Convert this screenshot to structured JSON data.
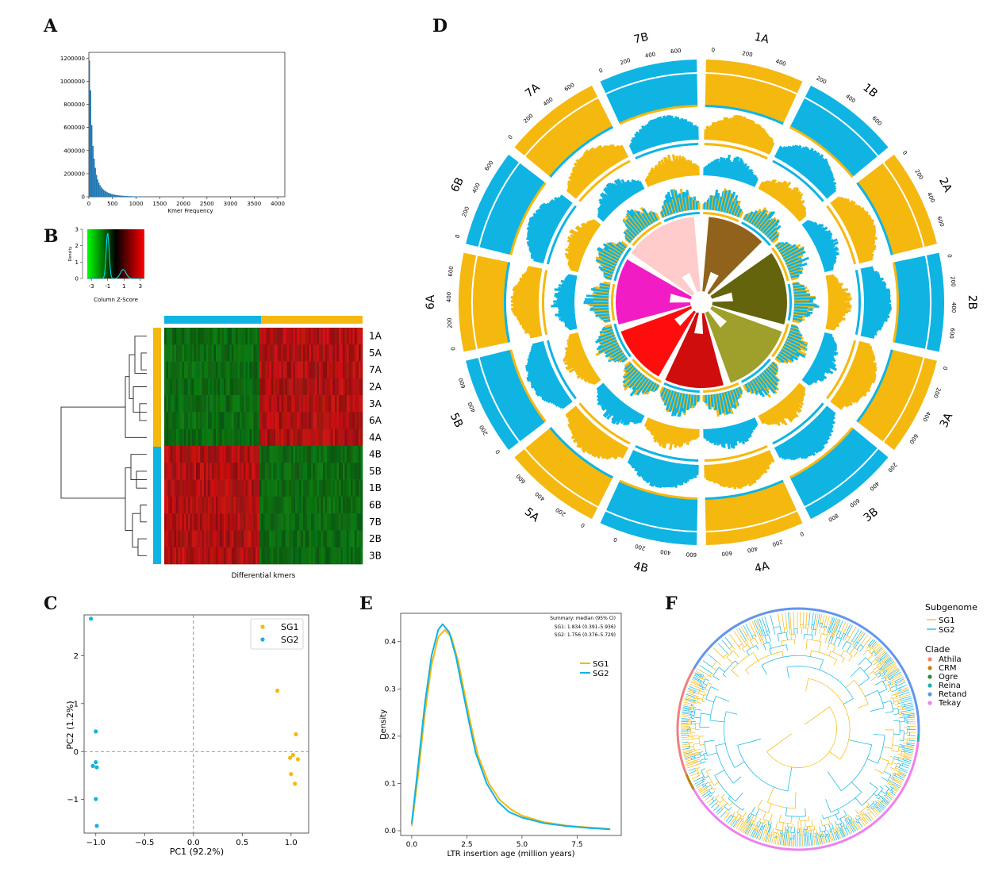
{
  "panels": {
    "A": {
      "letter": "A",
      "chart_data": {
        "type": "bar",
        "title": "",
        "xlabel": "Kmer Frequency",
        "ylabel": "",
        "xlim": [
          0,
          4150
        ],
        "ylim": [
          0,
          1250000
        ],
        "x_ticks": [
          0,
          500,
          1000,
          1500,
          2000,
          2500,
          3000,
          3500,
          4000
        ],
        "y_ticks": [
          0,
          200000,
          400000,
          600000,
          800000,
          1000000,
          1200000
        ],
        "bin_width": 25,
        "bins": [
          [
            12,
            1180000
          ],
          [
            37,
            920000
          ],
          [
            62,
            620000
          ],
          [
            87,
            440000
          ],
          [
            112,
            330000
          ],
          [
            137,
            250000
          ],
          [
            162,
            190000
          ],
          [
            187,
            150000
          ],
          [
            212,
            122000
          ],
          [
            237,
            100000
          ],
          [
            262,
            84000
          ],
          [
            287,
            71000
          ],
          [
            312,
            61000
          ],
          [
            337,
            53000
          ],
          [
            362,
            46000
          ],
          [
            387,
            40000
          ],
          [
            412,
            35000
          ],
          [
            437,
            31000
          ],
          [
            462,
            27000
          ],
          [
            487,
            24000
          ],
          [
            512,
            21000
          ],
          [
            537,
            19000
          ],
          [
            562,
            17000
          ],
          [
            587,
            15000
          ],
          [
            612,
            13500
          ],
          [
            637,
            12000
          ],
          [
            662,
            11000
          ],
          [
            687,
            10000
          ],
          [
            712,
            9000
          ],
          [
            737,
            8200
          ],
          [
            762,
            7500
          ],
          [
            787,
            6800
          ],
          [
            812,
            6200
          ],
          [
            837,
            5700
          ],
          [
            862,
            5200
          ],
          [
            887,
            4800
          ],
          [
            912,
            4400
          ],
          [
            937,
            4000
          ],
          [
            962,
            3700
          ],
          [
            987,
            3400
          ],
          [
            1012,
            3100
          ],
          [
            1037,
            2900
          ],
          [
            1062,
            2600
          ],
          [
            1087,
            2400
          ],
          [
            1112,
            2200
          ],
          [
            1137,
            2000
          ],
          [
            1162,
            1800
          ],
          [
            1187,
            1700
          ],
          [
            1212,
            1500
          ],
          [
            1237,
            1400
          ]
        ],
        "color": "#1f77b4"
      }
    },
    "B": {
      "letter": "B",
      "key_title": "Column Z-Score",
      "key_ylabel": "Density",
      "key_xticks": [
        "-3",
        "-1",
        "1",
        "3"
      ],
      "key_yticks": [
        "0",
        "1",
        "2",
        "3"
      ],
      "xlabel": "Differential kmers",
      "rows": [
        "1A",
        "5A",
        "7A",
        "2A",
        "3A",
        "6A",
        "4A",
        "4B",
        "5B",
        "1B",
        "6B",
        "7B",
        "2B",
        "3B"
      ],
      "row_groups": [
        "SG1",
        "SG1",
        "SG1",
        "SG1",
        "SG1",
        "SG1",
        "SG1",
        "SG2",
        "SG2",
        "SG2",
        "SG2",
        "SG2",
        "SG2",
        "SG2"
      ],
      "colors": {
        "sg1": "#f5b80f",
        "sg2": "#0fb4e3",
        "high": "#d01010",
        "low": "#108010"
      }
    },
    "C": {
      "letter": "C",
      "chart_data": {
        "type": "scatter",
        "xlabel": "PC1 (92.2%)",
        "ylabel": "PC2 (1.2%)",
        "xlim": [
          -1.12,
          1.18
        ],
        "ylim": [
          -1.7,
          2.85
        ],
        "x_ticks": [
          -1.0,
          -0.5,
          0.0,
          0.5,
          1.0
        ],
        "x_tick_labels": [
          "−1.0",
          "−0.5",
          "0.0",
          "0.5",
          "1.0"
        ],
        "y_ticks": [
          -1,
          0,
          1,
          2
        ],
        "y_tick_labels": [
          "−1",
          "0",
          "1",
          "2"
        ],
        "legend_position": "top-right",
        "series": [
          {
            "name": "SG1",
            "color": "#f5b80f",
            "points": [
              [
                0.86,
                1.27
              ],
              [
                1.05,
                0.36
              ],
              [
                1.02,
                -0.07
              ],
              [
                0.99,
                -0.13
              ],
              [
                1.07,
                -0.16
              ],
              [
                1.0,
                -0.47
              ],
              [
                1.04,
                -0.67
              ]
            ]
          },
          {
            "name": "SG2",
            "color": "#0fb4e3",
            "points": [
              [
                -1.05,
                2.77
              ],
              [
                -1.0,
                0.42
              ],
              [
                -1.0,
                -0.22
              ],
              [
                -1.03,
                -0.3
              ],
              [
                -0.99,
                -0.33
              ],
              [
                -1.0,
                -0.99
              ],
              [
                -0.99,
                -1.55
              ]
            ]
          }
        ]
      }
    },
    "D": {
      "letter": "D",
      "chromosomes": [
        {
          "name": "1A",
          "sg": "SG1",
          "ticks": [
            "0",
            "200",
            "400"
          ]
        },
        {
          "name": "1B",
          "sg": "SG2",
          "ticks": [
            "200",
            "400",
            "600"
          ]
        },
        {
          "name": "2A",
          "sg": "SG1",
          "ticks": [
            "0",
            "200",
            "400",
            "600"
          ]
        },
        {
          "name": "2B",
          "sg": "SG2",
          "ticks": [
            "0",
            "200",
            "400",
            "600"
          ]
        },
        {
          "name": "3A",
          "sg": "SG1",
          "ticks": [
            "0",
            "200",
            "400",
            "600"
          ]
        },
        {
          "name": "3B",
          "sg": "SG2",
          "ticks": [
            "200",
            "400",
            "600",
            "800"
          ]
        },
        {
          "name": "4A",
          "sg": "SG1",
          "ticks": [
            "0",
            "200",
            "400",
            "600"
          ]
        },
        {
          "name": "4B",
          "sg": "SG2",
          "ticks": [
            "600",
            "400",
            "200",
            "0"
          ]
        },
        {
          "name": "5A",
          "sg": "SG1",
          "ticks": [
            "0",
            "200",
            "400",
            "600"
          ]
        },
        {
          "name": "5B",
          "sg": "SG2",
          "ticks": [
            "0",
            "200",
            "400",
            "600"
          ]
        },
        {
          "name": "6A",
          "sg": "SG1",
          "ticks": [
            "0",
            "200",
            "400",
            "600"
          ]
        },
        {
          "name": "6B",
          "sg": "SG2",
          "ticks": [
            "0",
            "200",
            "400",
            "600"
          ]
        },
        {
          "name": "7A",
          "sg": "SG1",
          "ticks": [
            "0",
            "200",
            "400",
            "600"
          ]
        },
        {
          "name": "7B",
          "sg": "SG2",
          "ticks": [
            "0",
            "200",
            "400",
            "600"
          ]
        }
      ],
      "link_colors": [
        "#8b5a10",
        "#5c5c00",
        "#9a9a20",
        "#cc0000",
        "#ff0000",
        "#f010c0",
        "#ffc8c8"
      ]
    },
    "E": {
      "letter": "E",
      "summary_title": "Summary: median (95% CI)",
      "summary_sg1": "SG1: 1.834 (0.391–5.936)",
      "summary_sg2": "SG2: 1.756 (0.376–5.729)",
      "chart_data": {
        "type": "line",
        "xlabel": "LTR insertion age (million years)",
        "ylabel": "Density",
        "xlim": [
          -0.5,
          9.5
        ],
        "ylim": [
          -0.01,
          0.46
        ],
        "x_ticks": [
          0.0,
          2.5,
          5.0,
          7.5
        ],
        "x_tick_labels": [
          "0.0",
          "2.5",
          "5.0",
          "7.5"
        ],
        "y_ticks": [
          0.0,
          0.1,
          0.2,
          0.3,
          0.4
        ],
        "y_tick_labels": [
          "0.0",
          "0.1",
          "0.2",
          "0.3",
          "0.4"
        ],
        "legend_position": "right",
        "series": [
          {
            "name": "SG1",
            "color": "#f5b80f",
            "points": [
              [
                0.0,
                0.01
              ],
              [
                0.3,
                0.12
              ],
              [
                0.6,
                0.25
              ],
              [
                0.9,
                0.35
              ],
              [
                1.2,
                0.41
              ],
              [
                1.5,
                0.425
              ],
              [
                1.8,
                0.41
              ],
              [
                2.1,
                0.36
              ],
              [
                2.4,
                0.29
              ],
              [
                2.7,
                0.22
              ],
              [
                3.0,
                0.16
              ],
              [
                3.5,
                0.1
              ],
              [
                4.0,
                0.065
              ],
              [
                4.5,
                0.045
              ],
              [
                5.0,
                0.032
              ],
              [
                6.0,
                0.018
              ],
              [
                7.0,
                0.011
              ],
              [
                8.0,
                0.007
              ],
              [
                9.0,
                0.004
              ]
            ]
          },
          {
            "name": "SG2",
            "color": "#0fb4e3",
            "points": [
              [
                0.0,
                0.015
              ],
              [
                0.3,
                0.14
              ],
              [
                0.6,
                0.27
              ],
              [
                0.9,
                0.37
              ],
              [
                1.2,
                0.425
              ],
              [
                1.4,
                0.437
              ],
              [
                1.7,
                0.42
              ],
              [
                2.0,
                0.37
              ],
              [
                2.3,
                0.3
              ],
              [
                2.6,
                0.23
              ],
              [
                2.9,
                0.165
              ],
              [
                3.4,
                0.1
              ],
              [
                3.9,
                0.062
              ],
              [
                4.4,
                0.04
              ],
              [
                5.0,
                0.028
              ],
              [
                6.0,
                0.016
              ],
              [
                7.0,
                0.01
              ],
              [
                8.0,
                0.006
              ],
              [
                9.0,
                0.003
              ]
            ]
          }
        ]
      }
    },
    "F": {
      "letter": "F",
      "legend_subgenome_title": "Subgenome",
      "subgenome": [
        {
          "name": "SG1",
          "color": "#f5b80f"
        },
        {
          "name": "SG2",
          "color": "#0fb4e3"
        }
      ],
      "legend_clade_title": "Clade",
      "clades": [
        {
          "name": "Athila",
          "color": "#f08080"
        },
        {
          "name": "CRM",
          "color": "#b8860b"
        },
        {
          "name": "Ogre",
          "color": "#2e8b2e"
        },
        {
          "name": "Reina",
          "color": "#20b2aa"
        },
        {
          "name": "Retand",
          "color": "#6495ed"
        },
        {
          "name": "Tekay",
          "color": "#ee82ee"
        }
      ]
    }
  }
}
